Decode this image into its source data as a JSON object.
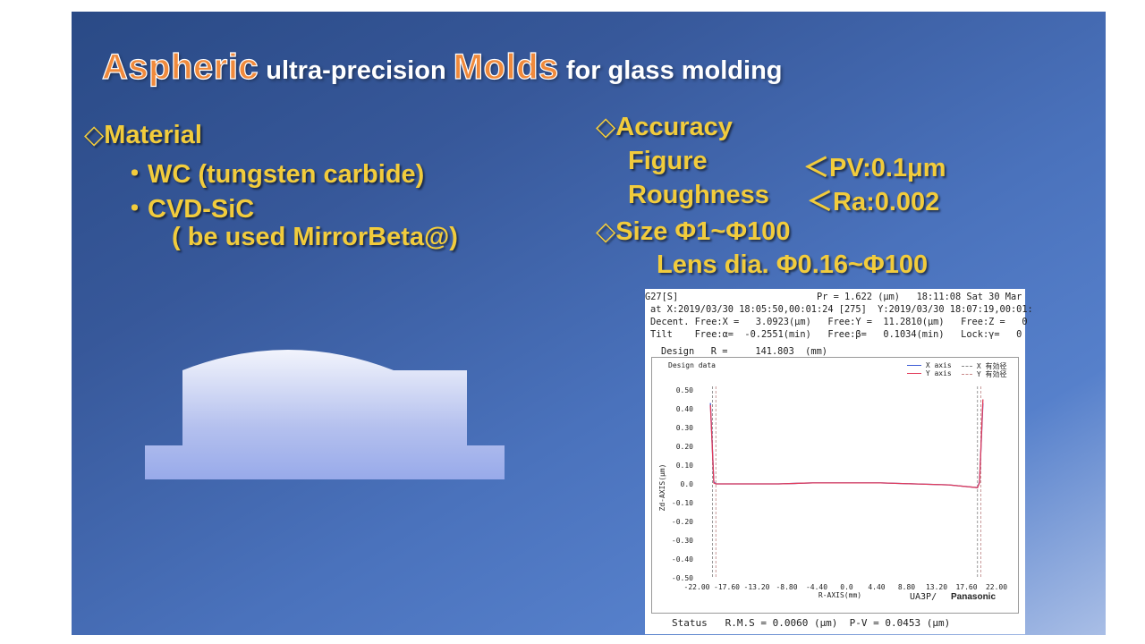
{
  "title": {
    "word1": "Aspheric",
    "text1": " ultra-precision ",
    "word2": "Molds",
    "text2": " for glass molding"
  },
  "material": {
    "heading": "◇Material",
    "item1": "・WC (tungsten carbide)",
    "item2": "・CVD-SiC",
    "item2_note": "( be used MirrorBeta@)"
  },
  "accuracy": {
    "heading": "◇Accuracy",
    "figure_label": "Figure",
    "figure_value": "＜PV:0.1μm",
    "roughness_label": "Roughness",
    "roughness_value": "＜Ra:0.002"
  },
  "size": {
    "heading": "◇Size Φ1~Φ100",
    "lens": "Lens dia. Φ0.16~Φ100"
  },
  "colors": {
    "title_accent": "#f08a3c",
    "body_text": "#f2cc3c",
    "x_series": "#3b5bd6",
    "y_series": "#e23c5a"
  },
  "measurement": {
    "line1_left": "G27[S]",
    "line1_right": "Pr = 1.622 (μm)   18:11:08 Sat 30 Mar",
    "line2": "at X:2019/03/30 18:05:50,00:01:24 [275]  Y:2019/03/30 18:07:19,00:01:",
    "line3": "Decent. Free:X =   3.0923(μm)   Free:Y =  11.2810(μm)   Free:Z =   0",
    "line4": "Tilt    Free:α=  -0.2551(min)   Free:β=   0.1034(min)   Lock:γ=   0",
    "line5": "Design   R =     141.803  (mm)",
    "status": "Status   R.M.S = 0.0060 (μm)  P-V = 0.0453 (μm)",
    "brand_left": "UA3P/",
    "brand_right": "Panasonic"
  },
  "chart_data": {
    "type": "line",
    "title": "Design data",
    "xlabel": "R-AXIS(mm)",
    "ylabel": "Zd-AXIS(μm)",
    "xlim": [
      -22.0,
      22.0
    ],
    "ylim": [
      -0.5,
      0.5
    ],
    "x_ticks": [
      "-22.00",
      "-17.60",
      "-13.20",
      "-8.80",
      "-4.40",
      "0.0",
      "4.40",
      "8.80",
      "13.20",
      "17.60",
      "22.00"
    ],
    "y_ticks": [
      "0.50",
      "0.40",
      "0.30",
      "0.20",
      "0.10",
      "0.0",
      "-0.10",
      "-0.20",
      "-0.30",
      "-0.40",
      "-0.50"
    ],
    "legend": [
      {
        "name": "X axis",
        "style": "solid",
        "color": "#3b5bd6"
      },
      {
        "name": "X 有効径",
        "style": "dashed",
        "color": "#888888"
      },
      {
        "name": "Y axis",
        "style": "solid",
        "color": "#e23c5a"
      },
      {
        "name": "Y 有効径",
        "style": "dashed",
        "color": "#c88888"
      }
    ],
    "effective_diameter_lines": [
      -19.7,
      -19.2,
      19.2,
      19.7
    ],
    "series": [
      {
        "name": "X axis",
        "x": [
          -20.0,
          -19.5,
          -19.2,
          -15.0,
          -10.0,
          -5.0,
          0.0,
          5.0,
          10.0,
          15.0,
          19.2,
          19.5,
          20.0
        ],
        "values": [
          0.43,
          0.01,
          0.0,
          0.0,
          0.0,
          0.005,
          0.005,
          0.005,
          0.0,
          -0.005,
          -0.02,
          0.01,
          0.43
        ]
      },
      {
        "name": "Y axis",
        "x": [
          -20.0,
          -19.5,
          -19.2,
          -15.0,
          -10.0,
          -5.0,
          0.0,
          5.0,
          10.0,
          15.0,
          19.2,
          19.5,
          20.0
        ],
        "values": [
          0.42,
          0.005,
          0.0,
          0.0,
          0.0,
          0.005,
          0.005,
          0.005,
          0.0,
          -0.005,
          -0.02,
          0.005,
          0.45
        ]
      }
    ]
  }
}
